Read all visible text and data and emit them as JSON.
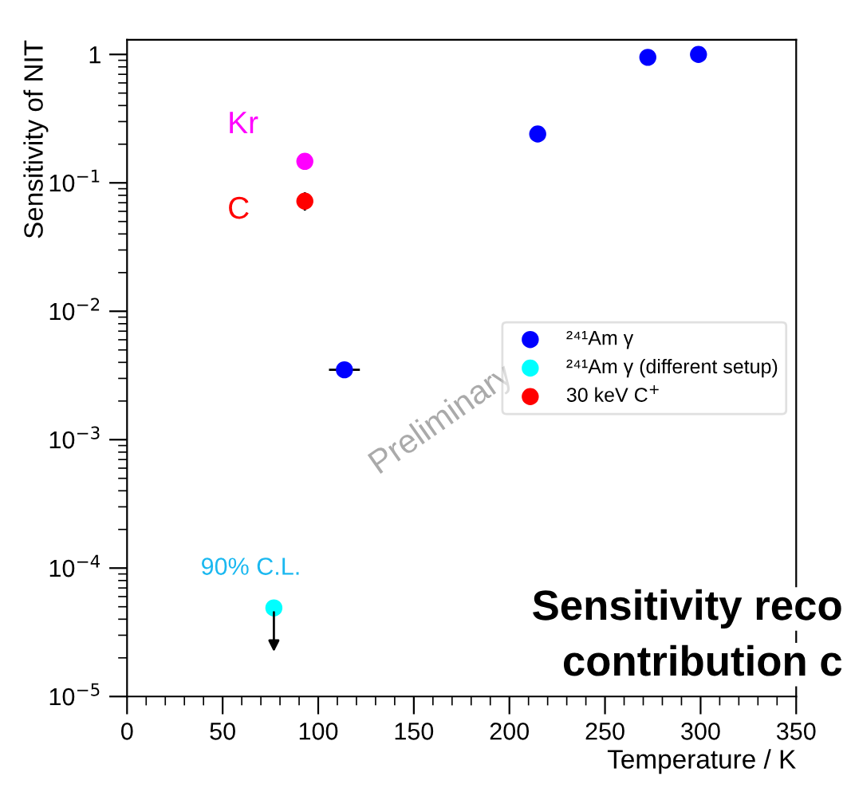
{
  "chart_data": {
    "type": "scatter",
    "xlabel": "Temperature / K",
    "ylabel": "Sensitivity of NIT",
    "series": [
      {
        "name": "²⁴¹Am γ",
        "color": "#0000ff",
        "x": [
          113.7,
          214.8,
          272.4,
          298.9
        ],
        "values": [
          0.0035,
          0.24,
          0.95,
          1.0
        ],
        "xerrors": [
          7.5,
          null,
          null,
          null
        ]
      },
      {
        "name": "²⁴¹Am γ (different setup)",
        "color": "#00ffff",
        "x": [
          76.8
        ],
        "values": [
          4.9e-05
        ]
      },
      {
        "name": "30 keV C$^{+}$",
        "color": "#ff0000",
        "x": [
          93
        ],
        "values": [
          0.072
        ],
        "errors": [
          [
            0.062,
            0.083
          ]
        ]
      },
      {
        "color": "#ff00ff",
        "x": [
          93
        ],
        "values": [
          0.147
        ]
      }
    ],
    "xlim": [
      0,
      350
    ],
    "xticks": [
      0,
      50,
      100,
      150,
      200,
      250,
      300,
      350
    ],
    "ylim": [
      1e-05,
      1.3
    ],
    "log": true,
    "yticks": [
      {
        "value": 1e-05,
        "label": "10$^{−5}$"
      },
      {
        "value": 0.0001,
        "label": "10$^{−4}$"
      },
      {
        "value": 0.001,
        "label": "10$^{−3}$"
      },
      {
        "value": 0.01,
        "label": "10$^{−2}$"
      },
      {
        "value": 0.1,
        "label": "10$^{−1}$"
      },
      1
    ],
    "marker": "circle",
    "grid": false,
    "legend": "right",
    "annotations": [
      "Kr",
      "C",
      "90% C.L.",
      "Preliminary",
      "Sensitivity reco",
      "contribution c"
    ]
  }
}
